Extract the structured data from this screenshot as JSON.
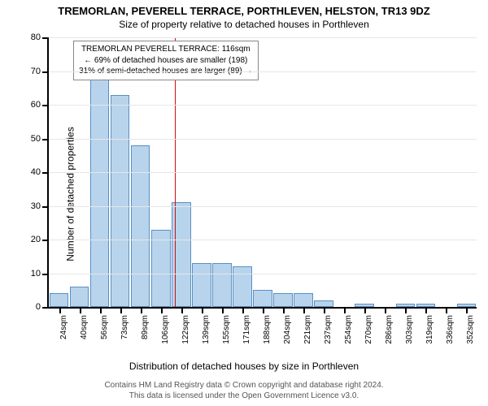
{
  "title": "TREMORLAN, PEVERELL TERRACE, PORTHLEVEN, HELSTON, TR13 9DZ",
  "subtitle": "Size of property relative to detached houses in Porthleven",
  "yaxis_label": "Number of detached properties",
  "xaxis_label": "Distribution of detached houses by size in Porthleven",
  "footer_l1": "Contains HM Land Registry data © Crown copyright and database right 2024.",
  "footer_l2": "This data is licensed under the Open Government Licence v3.0.",
  "chart": {
    "type": "histogram",
    "ylim": [
      0,
      80
    ],
    "ytick_step": 10,
    "bar_fill": "#b8d4ed",
    "bar_stroke": "#5a8fc4",
    "background": "#ffffff",
    "grid_color": "#e6e6e6",
    "axis_color": "#000000",
    "ref_line_color": "#cc1111",
    "ref_line_x_index": 5.7,
    "xticks": [
      "24sqm",
      "40sqm",
      "56sqm",
      "73sqm",
      "89sqm",
      "106sqm",
      "122sqm",
      "139sqm",
      "155sqm",
      "171sqm",
      "188sqm",
      "204sqm",
      "221sqm",
      "237sqm",
      "254sqm",
      "270sqm",
      "286sqm",
      "303sqm",
      "319sqm",
      "336sqm",
      "352sqm"
    ],
    "values": [
      4,
      6,
      68,
      63,
      48,
      23,
      31,
      13,
      13,
      12,
      5,
      4,
      4,
      2,
      0,
      1,
      0,
      1,
      1,
      0,
      1
    ],
    "callout": {
      "l1": "TREMORLAN PEVERELL TERRACE: 116sqm",
      "l2": "← 69% of detached houses are smaller (198)",
      "l3": "31% of semi-detached houses are larger (89) →"
    }
  }
}
